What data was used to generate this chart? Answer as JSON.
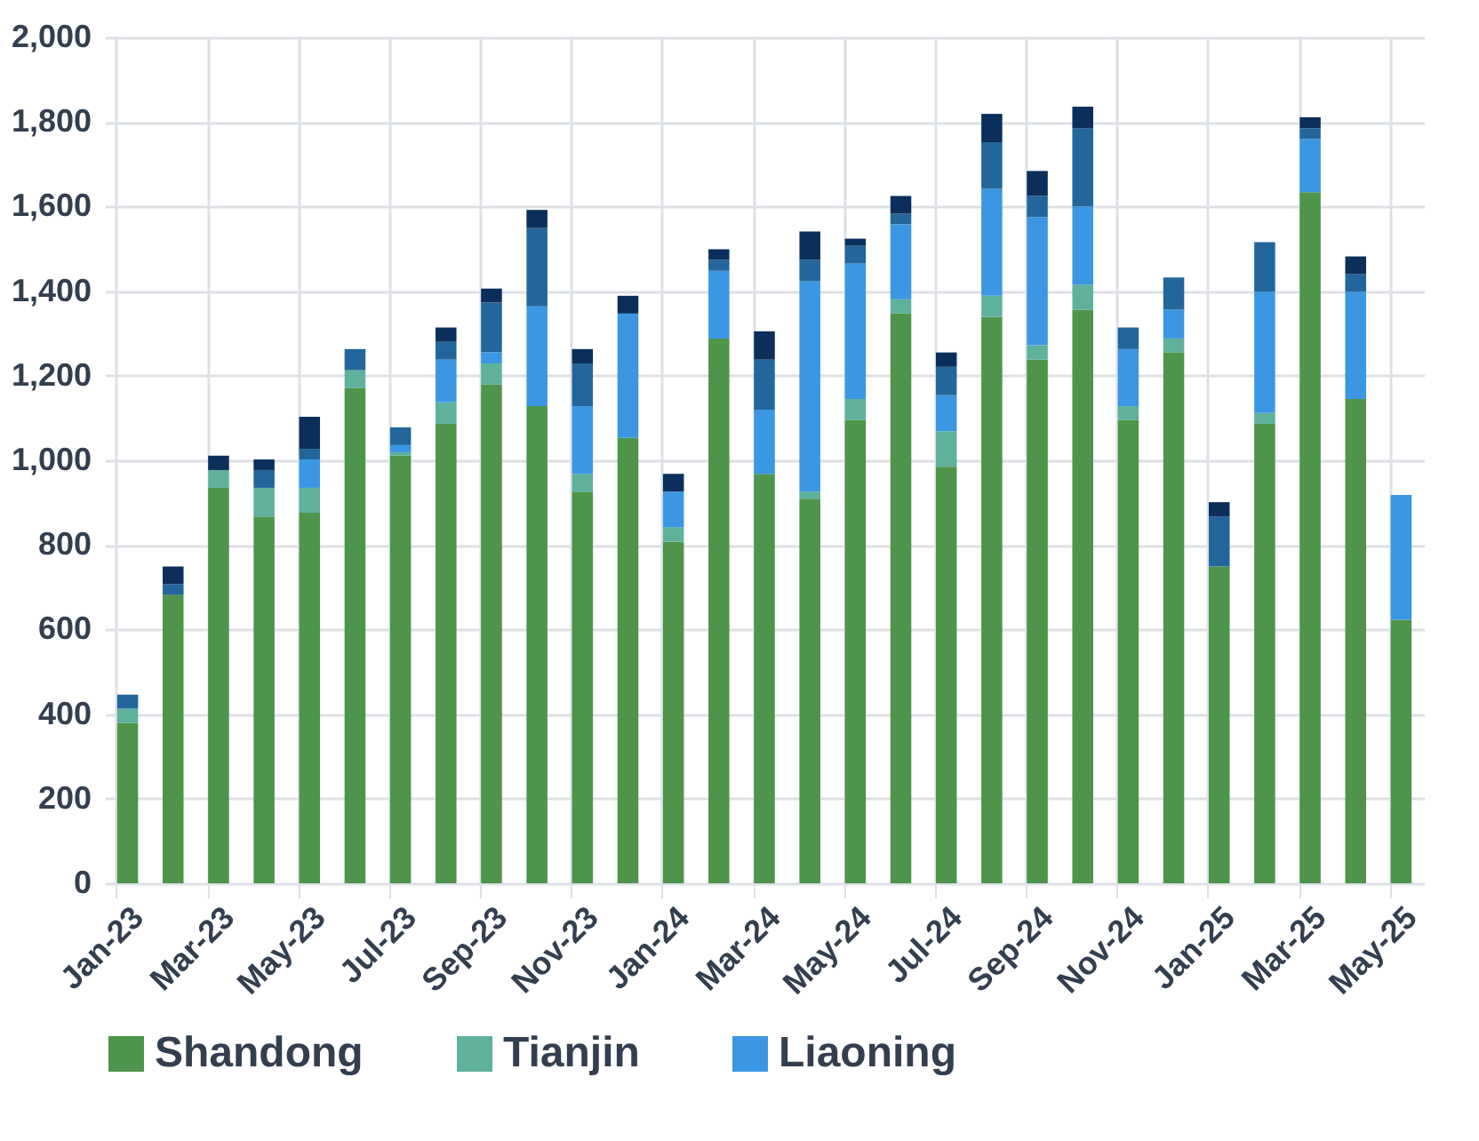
{
  "chart_data": {
    "type": "bar",
    "stacked": true,
    "grid": true,
    "legend": "bottom",
    "categories": [
      "Jan-23",
      null,
      "Mar-23",
      null,
      "May-23",
      null,
      "Jul-23",
      null,
      "Sep-23",
      null,
      "Nov-23",
      null,
      "Jan-24",
      null,
      "Mar-24",
      null,
      "May-24",
      null,
      "Jul-24",
      null,
      "Sep-24",
      null,
      "Nov-24",
      null,
      "Jan-25",
      null,
      "Mar-25",
      null,
      "May-25"
    ],
    "ylim": [
      0,
      2000
    ],
    "yticks": [
      0,
      200,
      400,
      600,
      800,
      {
        "value": 1000,
        "label": "1,000"
      },
      {
        "value": 1200,
        "label": "1,200"
      },
      {
        "value": 1400,
        "label": "1,400"
      },
      {
        "value": 1600,
        "label": "1,600"
      },
      {
        "value": 1800,
        "label": "1,800"
      },
      {
        "value": 2000,
        "label": "2,000"
      }
    ],
    "series": [
      {
        "name": "Shandong",
        "color": "#4e944b",
        "values": [
          379,
          682,
          935,
          867,
          876,
          1171,
          1011,
          1086,
          1179,
          1128,
          926,
          1053,
          808,
          1288,
          968,
          909,
          1095,
          1347,
          985,
          1339,
          1238,
          1356,
          1095,
          1255,
          749,
          1086,
          1634,
          1145,
          623
        ]
      },
      {
        "name": "Tianjin",
        "color": "#5fb19c",
        "values": [
          34,
          null,
          42,
          68,
          59,
          42,
          8,
          51,
          50,
          null,
          42,
          null,
          34,
          null,
          null,
          17,
          50,
          34,
          84,
          50,
          34,
          59,
          33,
          33,
          null,
          26,
          null,
          null,
          null
        ]
      },
      {
        "name": "Liaoning",
        "color": "#3b97e3",
        "values": [
          null,
          null,
          null,
          null,
          67,
          null,
          17,
          101,
          26,
          236,
          160,
          294,
          84,
          160,
          152,
          497,
          320,
          177,
          85,
          253,
          303,
          185,
          135,
          68,
          null,
          286,
          126,
          253,
          295
        ]
      },
      {
        "color": "#22669c",
        "values": [
          33,
          25,
          null,
          42,
          25,
          50,
          42,
          42,
          118,
          185,
          101,
          null,
          null,
          26,
          118,
          51,
          42,
          25,
          67,
          110,
          50,
          185,
          51,
          76,
          118,
          118,
          25,
          42,
          null
        ]
      },
      {
        "color": "#0b2f5a",
        "values": [
          null,
          42,
          34,
          25,
          76,
          null,
          null,
          34,
          33,
          43,
          34,
          42,
          42,
          25,
          67,
          67,
          17,
          42,
          34,
          67,
          59,
          51,
          null,
          null,
          34,
          null,
          26,
          42,
          null
        ]
      }
    ]
  }
}
